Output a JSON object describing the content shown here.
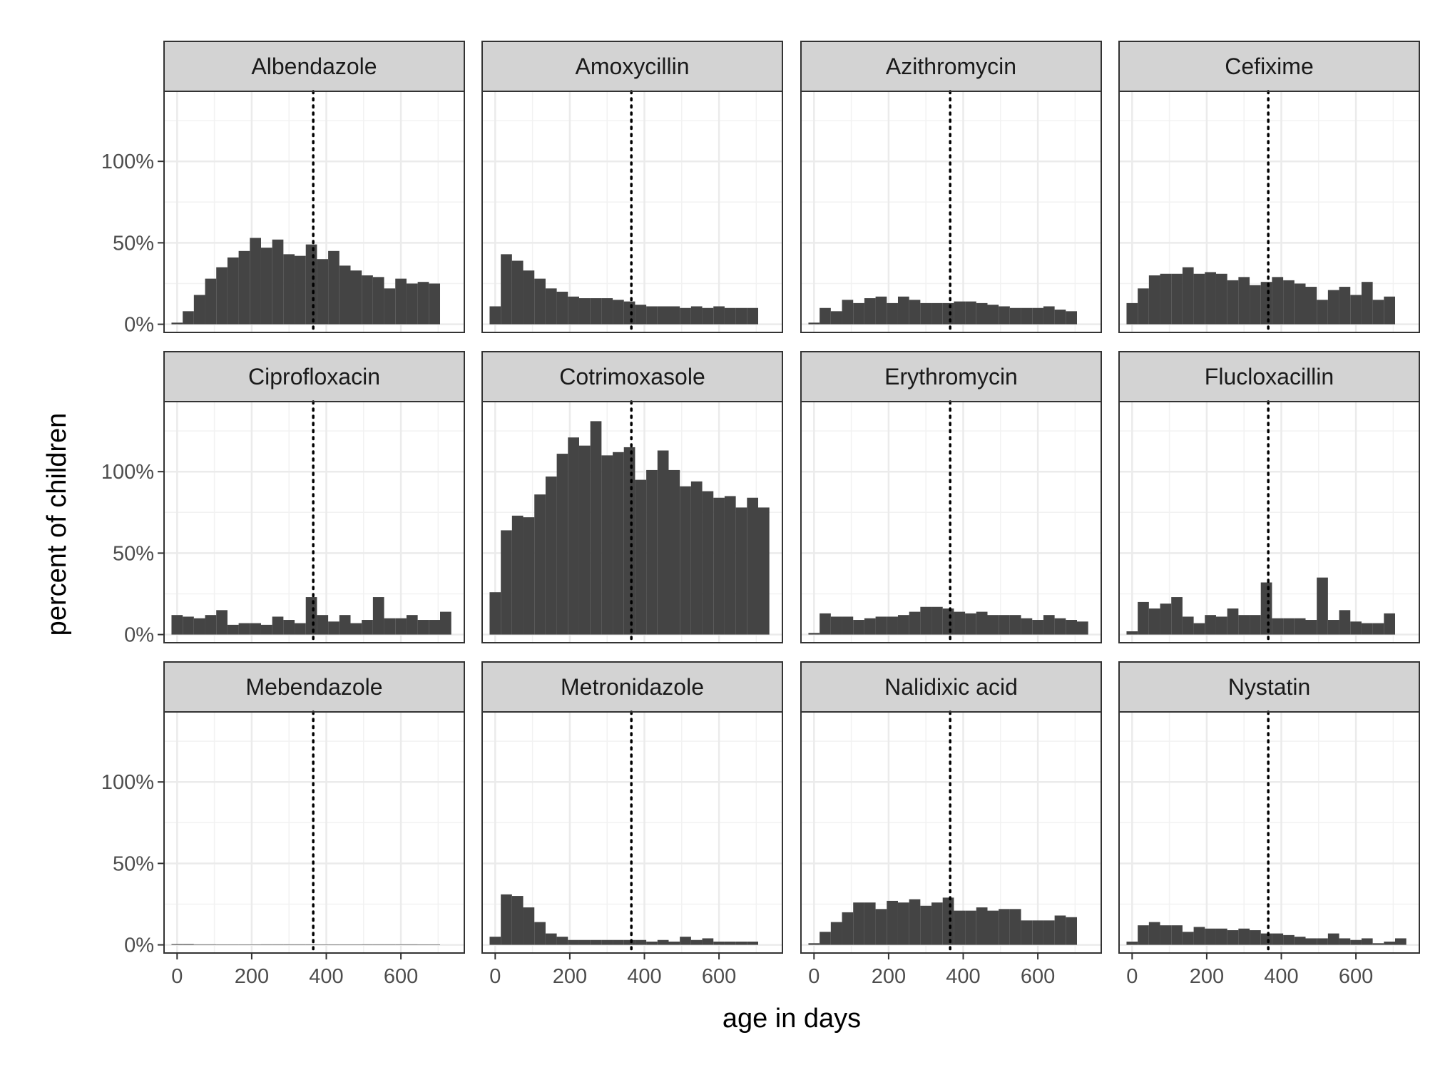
{
  "chart_data": {
    "type": "bar",
    "layout": "faceted histogram, 3 rows x 4 columns",
    "xlabel": "age in days",
    "ylabel": "percent of children",
    "xlim": [
      -35,
      770
    ],
    "ylim": [
      -5,
      143
    ],
    "x_ticks": [
      0,
      200,
      400,
      600
    ],
    "y_ticks": [
      0,
      50,
      100
    ],
    "y_tick_labels": [
      "0%",
      "50%",
      "100%"
    ],
    "reference_line": {
      "x": 365,
      "style": "dotted"
    },
    "bin_width": 30,
    "bin_starts": [
      -15,
      15,
      45,
      75,
      105,
      135,
      165,
      195,
      225,
      255,
      285,
      315,
      345,
      375,
      405,
      435,
      465,
      495,
      525,
      555,
      585,
      615,
      645,
      675,
      705
    ],
    "grid": true,
    "bar_color": "#444444",
    "strip_color": "#d3d3d3",
    "panels": [
      {
        "name": "Albendazole",
        "values": [
          1,
          8,
          18,
          28,
          35,
          41,
          45,
          53,
          47,
          52,
          43,
          42,
          49,
          40,
          45,
          36,
          33,
          30,
          29,
          22,
          28,
          25,
          26,
          25,
          0
        ]
      },
      {
        "name": "Amoxycillin",
        "values": [
          11,
          43,
          39,
          33,
          28,
          22,
          20,
          17,
          16,
          16,
          16,
          15,
          14,
          12,
          11,
          11,
          11,
          10,
          11,
          10,
          11,
          10,
          10,
          10,
          0
        ]
      },
      {
        "name": "Azithromycin",
        "values": [
          1,
          10,
          8,
          15,
          13,
          16,
          17,
          13,
          17,
          15,
          13,
          13,
          13,
          14,
          14,
          13,
          12,
          11,
          10,
          10,
          10,
          11,
          9,
          8,
          0
        ]
      },
      {
        "name": "Cefixime",
        "values": [
          13,
          22,
          30,
          31,
          31,
          35,
          31,
          32,
          31,
          27,
          29,
          24,
          26,
          29,
          27,
          25,
          23,
          15,
          21,
          23,
          18,
          26,
          15,
          17,
          0
        ]
      },
      {
        "name": "Ciprofloxacin",
        "values": [
          12,
          11,
          10,
          12,
          15,
          6,
          7,
          7,
          6,
          11,
          9,
          7,
          23,
          12,
          8,
          12,
          7,
          9,
          23,
          10,
          10,
          12,
          9,
          9,
          14
        ]
      },
      {
        "name": "Cotrimoxasole",
        "values": [
          26,
          64,
          73,
          72,
          86,
          97,
          111,
          121,
          116,
          131,
          110,
          112,
          115,
          95,
          101,
          113,
          101,
          91,
          94,
          88,
          84,
          85,
          78,
          84,
          78
        ]
      },
      {
        "name": "Erythromycin",
        "values": [
          1,
          13,
          11,
          11,
          9,
          10,
          11,
          11,
          12,
          14,
          17,
          17,
          16,
          14,
          13,
          14,
          12,
          12,
          12,
          10,
          9,
          12,
          10,
          9,
          8
        ]
      },
      {
        "name": "Flucloxacillin",
        "values": [
          2,
          20,
          16,
          19,
          23,
          11,
          7,
          12,
          11,
          16,
          12,
          12,
          32,
          10,
          10,
          10,
          9,
          35,
          9,
          15,
          8,
          7,
          7,
          13,
          0
        ]
      },
      {
        "name": "Mebendazole",
        "values": [
          0.5,
          0.5,
          0.3,
          0.3,
          0.2,
          0.2,
          0.2,
          0.2,
          0.3,
          0.3,
          0.3,
          0.3,
          0.3,
          0.2,
          0.2,
          0.2,
          0.2,
          0.3,
          0.3,
          0.3,
          0.3,
          0.3,
          0.2,
          0.2,
          0
        ]
      },
      {
        "name": "Metronidazole",
        "values": [
          5,
          31,
          30,
          23,
          14,
          7,
          5,
          3,
          3,
          3,
          3,
          3,
          3,
          3,
          2,
          3,
          2,
          5,
          3,
          4,
          2,
          2,
          2,
          2,
          0
        ]
      },
      {
        "name": "Nalidixic acid",
        "values": [
          1,
          8,
          14,
          20,
          26,
          26,
          22,
          27,
          26,
          28,
          24,
          26,
          29,
          21,
          21,
          23,
          21,
          22,
          22,
          15,
          15,
          15,
          18,
          17,
          0
        ]
      },
      {
        "name": "Nystatin",
        "values": [
          2,
          12,
          14,
          12,
          12,
          8,
          11,
          10,
          10,
          9,
          10,
          9,
          7,
          7,
          6,
          5,
          4,
          4,
          7,
          4,
          3,
          4,
          1,
          2,
          4
        ]
      }
    ]
  }
}
